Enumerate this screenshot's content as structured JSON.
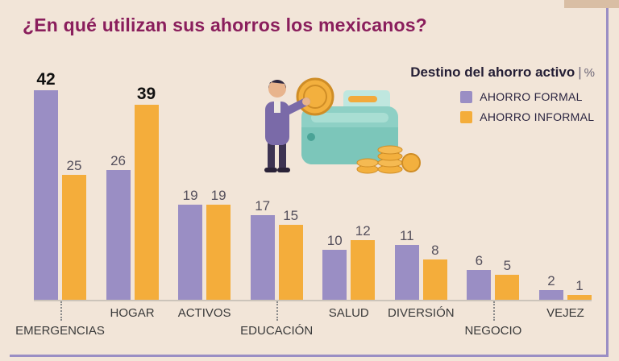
{
  "page": {
    "title": "¿En qué utilizan sus ahorros los mexicanos?",
    "subtitle": "Destino del ahorro activo",
    "unit": "%"
  },
  "legend": [
    {
      "label": "AHORRO FORMAL",
      "color": "#9a8ec4"
    },
    {
      "label": "AHORRO INFORMAL",
      "color": "#f4ad3b"
    }
  ],
  "chart_data": {
    "type": "bar",
    "title": "¿En qué utilizan sus ahorros los mexicanos?",
    "subtitle": "Destino del ahorro activo",
    "unit": "%",
    "categories": [
      "EMERGENCIAS",
      "HOGAR",
      "ACTIVOS",
      "EDUCACIÓN",
      "SALUD",
      "DIVERSIÓN",
      "NEGOCIO",
      "VEJEZ"
    ],
    "series": [
      {
        "name": "AHORRO FORMAL",
        "color": "#9a8ec4",
        "values": [
          42,
          26,
          19,
          17,
          10,
          11,
          6,
          2
        ],
        "emphasized_indexes": [
          0
        ]
      },
      {
        "name": "AHORRO INFORMAL",
        "color": "#f4ad3b",
        "values": [
          25,
          39,
          19,
          15,
          12,
          8,
          5,
          1
        ],
        "emphasized_indexes": [
          1
        ]
      }
    ],
    "ylim": [
      0,
      45
    ],
    "grid": false,
    "legend_position": "top-right",
    "label_rows": [
      "lower",
      "upper",
      "upper",
      "lower",
      "upper",
      "upper",
      "lower",
      "upper"
    ]
  },
  "illustration": {
    "name": "man-with-coin-wallet-and-coin-stacks"
  },
  "colors": {
    "background": "#f2e5d8",
    "title": "#8a1e5c",
    "formal_bar": "#9a8ec4",
    "informal_bar": "#f4ad3b",
    "value_text": "#55505c",
    "emphasized_value_text": "#111111",
    "baseline": "#ccc4ba",
    "frame": "#9a8ec4",
    "corner_tab": "#d9bea4",
    "wallet_teal": "#8ed0c5",
    "coin_gold": "#f3b03e"
  }
}
